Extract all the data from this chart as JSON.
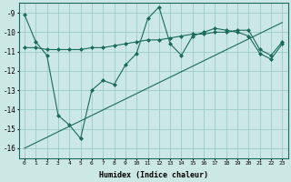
{
  "xlabel": "Humidex (Indice chaleur)",
  "ylabel": "",
  "bg_color": "#cce8e4",
  "grid_color": "#99ccc6",
  "line_color": "#1a6b5a",
  "xlim": [
    -0.5,
    23.5
  ],
  "ylim": [
    -16.5,
    -8.5
  ],
  "yticks": [
    -16,
    -15,
    -14,
    -13,
    -12,
    -11,
    -10,
    -9
  ],
  "xticks": [
    0,
    1,
    2,
    3,
    4,
    5,
    6,
    7,
    8,
    9,
    10,
    11,
    12,
    13,
    14,
    15,
    16,
    17,
    18,
    19,
    20,
    21,
    22,
    23
  ],
  "line1_x": [
    0,
    1,
    2,
    3,
    4,
    5,
    6,
    7,
    8,
    9,
    10,
    11,
    12,
    13,
    14,
    15,
    16,
    17,
    18,
    19,
    20,
    21,
    22,
    23
  ],
  "line1_y": [
    -9.1,
    -10.5,
    -11.2,
    -14.3,
    -14.8,
    -15.5,
    -13.0,
    -12.5,
    -12.7,
    -11.7,
    -11.1,
    -9.3,
    -8.7,
    -10.6,
    -11.2,
    -10.2,
    -10.0,
    -9.8,
    -9.9,
    -10.0,
    -10.2,
    -11.1,
    -11.4,
    -10.6
  ],
  "line2_x": [
    0,
    23
  ],
  "line2_y": [
    -16.0,
    -9.5
  ],
  "line3_x": [
    0,
    1,
    2,
    3,
    4,
    5,
    6,
    7,
    8,
    9,
    10,
    11,
    12,
    13,
    14,
    15,
    16,
    17,
    18,
    19,
    20,
    21,
    22,
    23
  ],
  "line3_y": [
    -10.8,
    -10.8,
    -10.9,
    -10.9,
    -10.9,
    -10.9,
    -10.8,
    -10.8,
    -10.7,
    -10.6,
    -10.5,
    -10.4,
    -10.4,
    -10.3,
    -10.2,
    -10.1,
    -10.1,
    -10.0,
    -10.0,
    -9.9,
    -9.9,
    -10.9,
    -11.2,
    -10.5
  ]
}
